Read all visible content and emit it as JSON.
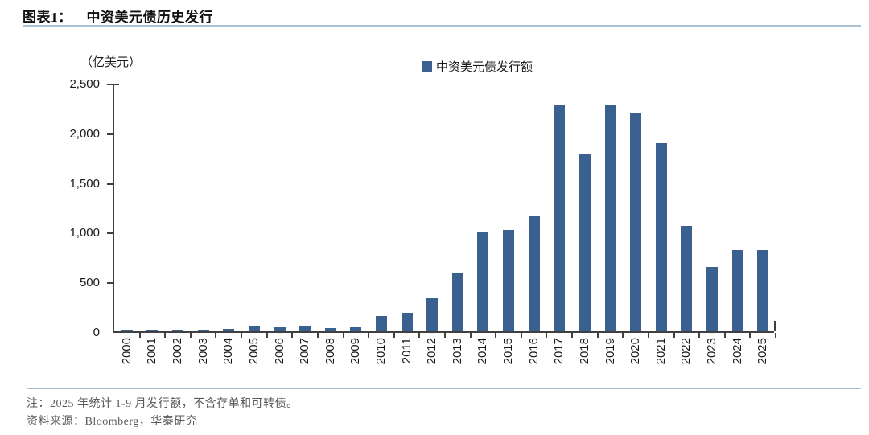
{
  "header": {
    "figure_label": "图表1：",
    "title": "中资美元债历史发行"
  },
  "chart": {
    "unit_label": "（亿美元）",
    "legend_label": "中资美元债发行额"
  },
  "chart_data": {
    "type": "bar",
    "title": "中资美元债历史发行",
    "series_name": "中资美元债发行额",
    "categories": [
      "2000",
      "2001",
      "2002",
      "2003",
      "2004",
      "2005",
      "2006",
      "2007",
      "2008",
      "2009",
      "2010",
      "2011",
      "2012",
      "2013",
      "2014",
      "2015",
      "2016",
      "2017",
      "2018",
      "2019",
      "2020",
      "2021",
      "2022",
      "2023",
      "2024",
      "2025"
    ],
    "values": [
      5,
      15,
      10,
      20,
      25,
      60,
      40,
      55,
      30,
      40,
      150,
      190,
      330,
      590,
      1000,
      1020,
      1160,
      2280,
      1790,
      2270,
      2190,
      1890,
      1060,
      650,
      820,
      815
    ],
    "xlabel": "",
    "ylabel": "（亿美元）",
    "ylim": [
      0,
      2500
    ],
    "ytick_step": 500,
    "ytick_labels": [
      "0",
      "500",
      "1,000",
      "1,500",
      "2,000",
      "2,500"
    ],
    "grid": false,
    "legend_position": "top-center",
    "bar_color": "#3a608f"
  },
  "footer": {
    "note": "注：2025 年统计 1-9 月发行额，不含存单和可转债。",
    "source": "资料来源：Bloomberg，华泰研究"
  },
  "colors": {
    "bar": "#3a608f",
    "axis": "#404040",
    "separator": "#a9c0d2",
    "note_text": "#595959"
  }
}
